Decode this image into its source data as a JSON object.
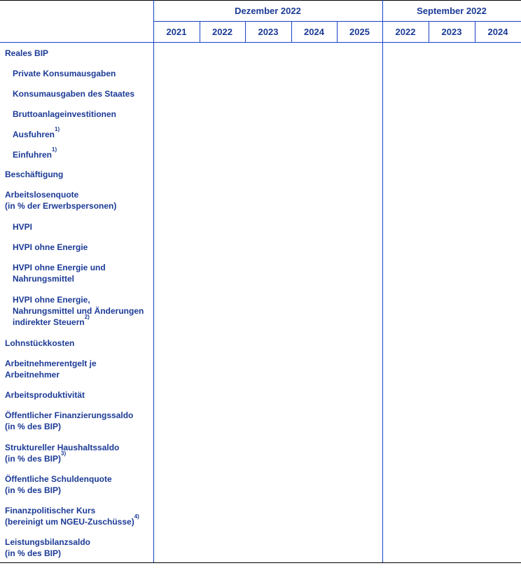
{
  "table": {
    "header": {
      "groups": [
        {
          "label": "Dezember 2022",
          "years": [
            "2021",
            "2022",
            "2023",
            "2024",
            "2025"
          ]
        },
        {
          "label": "September 2022",
          "years": [
            "2022",
            "2023",
            "2024"
          ]
        }
      ]
    },
    "rows": [
      {
        "id": "reales-bip",
        "indent": false,
        "lines": [
          [
            "Reales BIP"
          ]
        ]
      },
      {
        "id": "private-konsumausgaben",
        "indent": true,
        "lines": [
          [
            "Private Konsumausgaben"
          ]
        ]
      },
      {
        "id": "konsumausgaben-des-staates",
        "indent": true,
        "lines": [
          [
            "Konsumausgaben des Staates"
          ]
        ]
      },
      {
        "id": "bruttoanlageinvestitionen",
        "indent": true,
        "lines": [
          [
            "Bruttoanlageinvestitionen"
          ]
        ]
      },
      {
        "id": "ausfuhren",
        "indent": true,
        "lines": [
          [
            "Ausfuhren",
            {
              "sup": "1)"
            }
          ]
        ]
      },
      {
        "id": "einfuhren",
        "indent": true,
        "lines": [
          [
            "Einfuhren",
            {
              "sup": "1)"
            }
          ]
        ]
      },
      {
        "id": "beschaeftigung",
        "indent": false,
        "lines": [
          [
            "Beschäftigung"
          ]
        ]
      },
      {
        "id": "arbeitslosenquote",
        "indent": false,
        "lines": [
          [
            "Arbeitslosenquote"
          ],
          [
            "(in % der Erwerbspersonen)"
          ]
        ]
      },
      {
        "id": "hvpi",
        "indent": true,
        "lines": [
          [
            "HVPI"
          ]
        ]
      },
      {
        "id": "hvpi-ohne-energie",
        "indent": true,
        "lines": [
          [
            "HVPI ohne Energie"
          ]
        ]
      },
      {
        "id": "hvpi-ohne-energie-und-nahrungsmittel",
        "indent": true,
        "lines": [
          [
            "HVPI ohne Energie und"
          ],
          [
            "Nahrungsmittel"
          ]
        ]
      },
      {
        "id": "hvpi-ohne-energie-nahrungsmittel-steuern",
        "indent": true,
        "lines": [
          [
            "HVPI ohne Energie,"
          ],
          [
            "Nahrungsmittel und Änderungen"
          ],
          [
            "indirekter Steuern",
            {
              "sup": "2)"
            }
          ]
        ]
      },
      {
        "id": "lohnstueckkosten",
        "indent": false,
        "lines": [
          [
            "Lohnstückkosten"
          ]
        ]
      },
      {
        "id": "arbeitnehmerentgelt",
        "indent": false,
        "lines": [
          [
            "Arbeitnehmerentgelt je"
          ],
          [
            "Arbeitnehmer"
          ]
        ]
      },
      {
        "id": "arbeitsproduktivitaet",
        "indent": false,
        "lines": [
          [
            "Arbeitsproduktivität"
          ]
        ]
      },
      {
        "id": "oeffentlicher-finanzierungssaldo",
        "indent": false,
        "lines": [
          [
            "Öffentlicher Finanzierungssaldo"
          ],
          [
            "(in % des BIP)"
          ]
        ]
      },
      {
        "id": "struktureller-haushaltssaldo",
        "indent": false,
        "lines": [
          [
            "Struktureller Haushaltssaldo"
          ],
          [
            "(in % des BIP)",
            {
              "sup": "3)"
            }
          ]
        ]
      },
      {
        "id": "oeffentliche-schuldenquote",
        "indent": false,
        "lines": [
          [
            "Öffentliche Schuldenquote"
          ],
          [
            "(in % des BIP)"
          ]
        ]
      },
      {
        "id": "finanzpolitischer-kurs",
        "indent": false,
        "lines": [
          [
            "Finanzpolitischer Kurs"
          ],
          [
            "(bereinigt um NGEU-Zuschüsse)",
            {
              "sup": "4)"
            }
          ]
        ]
      },
      {
        "id": "leistungsbilanzsaldo",
        "indent": false,
        "lines": [
          [
            "Leistungsbilanzsaldo"
          ],
          [
            "(in % des BIP)"
          ]
        ]
      }
    ],
    "body_cells_empty": true,
    "colors": {
      "text_blue": "#1b3a96",
      "rule_blue": "#1742c8",
      "frame_black": "#000000"
    }
  }
}
